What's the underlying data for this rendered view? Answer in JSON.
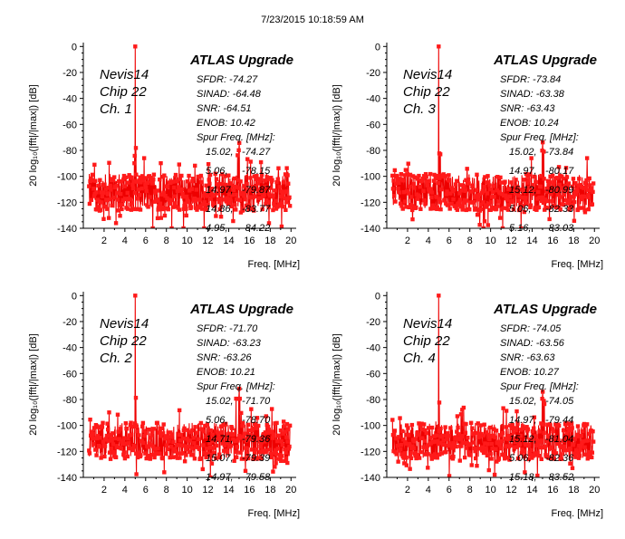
{
  "timestamp": "7/23/2015 10:18:59 AM",
  "colors": {
    "trace": "#ee0000",
    "marker": "#ff1a1a"
  },
  "chart_data": [
    {
      "type": "line",
      "title": "ATLAS Upgrade",
      "xlabel": "Freq. [MHz]",
      "ylabel": "20 log₁₀(|fft|/|max|)  [dB]",
      "xlim": [
        0,
        20.5
      ],
      "ylim": [
        -140,
        3
      ],
      "xticks": [
        2,
        4,
        6,
        8,
        10,
        12,
        14,
        16,
        18,
        20
      ],
      "yticks": [
        0,
        -20,
        -40,
        -60,
        -80,
        -100,
        -120,
        -140
      ],
      "chip_lines": [
        "Nevis14",
        "Chip 22",
        "Ch. 1"
      ],
      "stats": [
        "SFDR: -74.27",
        "SINAD: -64.48",
        "SNR: -64.51",
        "ENOB: 10.42",
        "Spur Freq. [MHz]:"
      ],
      "spurs": [
        {
          "freq": "15.02",
          "value": "-74.27"
        },
        {
          "freq": "5.06",
          "value": "-78.15"
        },
        {
          "freq": "14.97",
          "value": "-79.87"
        },
        {
          "freq": "14.86",
          "value": "-83.77"
        },
        {
          "freq": "4.95",
          "value": "-84.22"
        }
      ],
      "signal_peak": {
        "freq": 5.0,
        "db": 0
      },
      "noise_floor_db": -112
    },
    {
      "type": "line",
      "title": "ATLAS Upgrade",
      "xlabel": "Freq. [MHz]",
      "ylabel": "20 log₁₀(|fft|/|max|)  [dB]",
      "xlim": [
        0,
        20.5
      ],
      "ylim": [
        -140,
        3
      ],
      "xticks": [
        2,
        4,
        6,
        8,
        10,
        12,
        14,
        16,
        18,
        20
      ],
      "yticks": [
        0,
        -20,
        -40,
        -60,
        -80,
        -100,
        -120,
        -140
      ],
      "chip_lines": [
        "Nevis14",
        "Chip 22",
        "Ch. 3"
      ],
      "stats": [
        "SFDR: -73.84",
        "SINAD: -63.38",
        "SNR: -63.43",
        "ENOB: 10.24",
        "Spur Freq. [MHz]:"
      ],
      "spurs": [
        {
          "freq": "15.02",
          "value": "-73.84"
        },
        {
          "freq": "14.97",
          "value": "-80.17"
        },
        {
          "freq": "15.12",
          "value": "-80.99"
        },
        {
          "freq": "5.06",
          "value": "-82.33"
        },
        {
          "freq": "5.16",
          "value": "-83.03"
        }
      ],
      "signal_peak": {
        "freq": 5.0,
        "db": 0
      },
      "noise_floor_db": -112
    },
    {
      "type": "line",
      "title": "ATLAS Upgrade",
      "xlabel": "Freq. [MHz]",
      "ylabel": "20 log₁₀(|fft|/|max|)  [dB]",
      "xlim": [
        0,
        20.5
      ],
      "ylim": [
        -140,
        3
      ],
      "xticks": [
        2,
        4,
        6,
        8,
        10,
        12,
        14,
        16,
        18,
        20
      ],
      "yticks": [
        0,
        -20,
        -40,
        -60,
        -80,
        -100,
        -120,
        -140
      ],
      "chip_lines": [
        "Nevis14",
        "Chip 22",
        "Ch. 2"
      ],
      "stats": [
        "SFDR: -71.70",
        "SINAD: -63.23",
        "SNR: -63.26",
        "ENOB: 10.21",
        "Spur Freq. [MHz]:"
      ],
      "spurs": [
        {
          "freq": "15.02",
          "value": "-71.70"
        },
        {
          "freq": "5.06",
          "value": "-78.70"
        },
        {
          "freq": "14.71",
          "value": "-79.36"
        },
        {
          "freq": "15.07",
          "value": "-79.39"
        },
        {
          "freq": "14.97",
          "value": "-79.58"
        }
      ],
      "signal_peak": {
        "freq": 5.0,
        "db": 0
      },
      "noise_floor_db": -112
    },
    {
      "type": "line",
      "title": "ATLAS Upgrade",
      "xlabel": "Freq. [MHz]",
      "ylabel": "20 log₁₀(|fft|/|max|)  [dB]",
      "xlim": [
        0,
        20.5
      ],
      "ylim": [
        -140,
        3
      ],
      "xticks": [
        2,
        4,
        6,
        8,
        10,
        12,
        14,
        16,
        18,
        20
      ],
      "yticks": [
        0,
        -20,
        -40,
        -60,
        -80,
        -100,
        -120,
        -140
      ],
      "chip_lines": [
        "Nevis14",
        "Chip 22",
        "Ch. 4"
      ],
      "stats": [
        "SFDR: -74.05",
        "SINAD: -63.56",
        "SNR: -63.63",
        "ENOB: 10.27",
        "Spur Freq. [MHz]:"
      ],
      "spurs": [
        {
          "freq": "15.02",
          "value": "-74.05"
        },
        {
          "freq": "14.97",
          "value": "-79.44"
        },
        {
          "freq": "15.12",
          "value": "-81.04"
        },
        {
          "freq": "5.06",
          "value": "-82.36"
        },
        {
          "freq": "15.18",
          "value": "-83.52"
        }
      ],
      "signal_peak": {
        "freq": 5.0,
        "db": 0
      },
      "noise_floor_db": -112
    }
  ]
}
